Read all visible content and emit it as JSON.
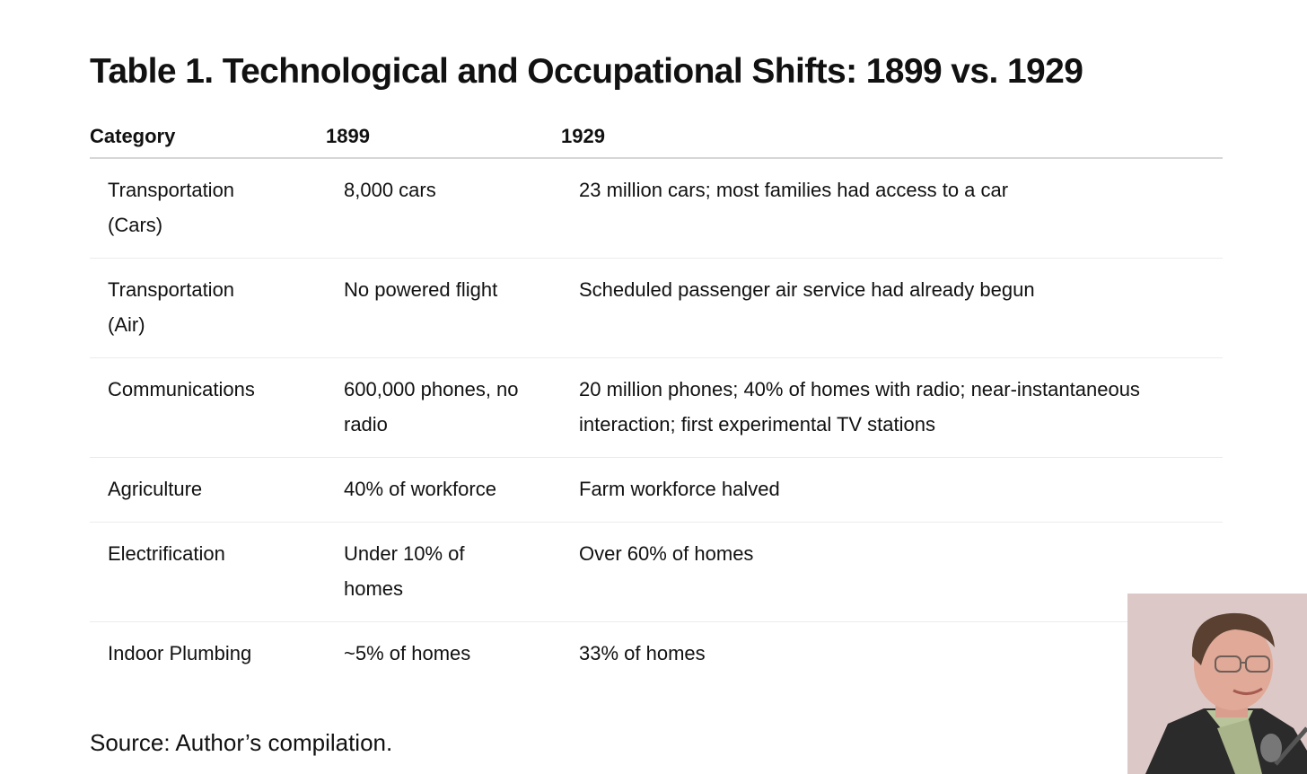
{
  "title": "Table 1. Technological and Occupational Shifts: 1899 vs. 1929",
  "table": {
    "headers": [
      "Category",
      "1899",
      "1929"
    ],
    "rows": [
      {
        "category": "Transportation (Cars)",
        "y1899": "8,000 cars",
        "y1929": "23 million cars; most families had access to a car"
      },
      {
        "category": "Transportation (Air)",
        "y1899": "No powered flight",
        "y1929": "Scheduled passenger air service had already begun"
      },
      {
        "category": "Communications",
        "y1899": "600,000 phones, no radio",
        "y1929": "20 million phones; 40% of homes with radio; near-instantaneous interaction; first experimental TV stations"
      },
      {
        "category": "Agriculture",
        "y1899": "40% of workforce",
        "y1929": "Farm workforce halved"
      },
      {
        "category": "Electrification",
        "y1899": "Under 10% of homes",
        "y1929": "Over 60% of homes"
      },
      {
        "category": "Indoor Plumbing",
        "y1899": "~5% of homes",
        "y1929": "33% of homes"
      }
    ]
  },
  "source": "Source: Author’s compilation."
}
